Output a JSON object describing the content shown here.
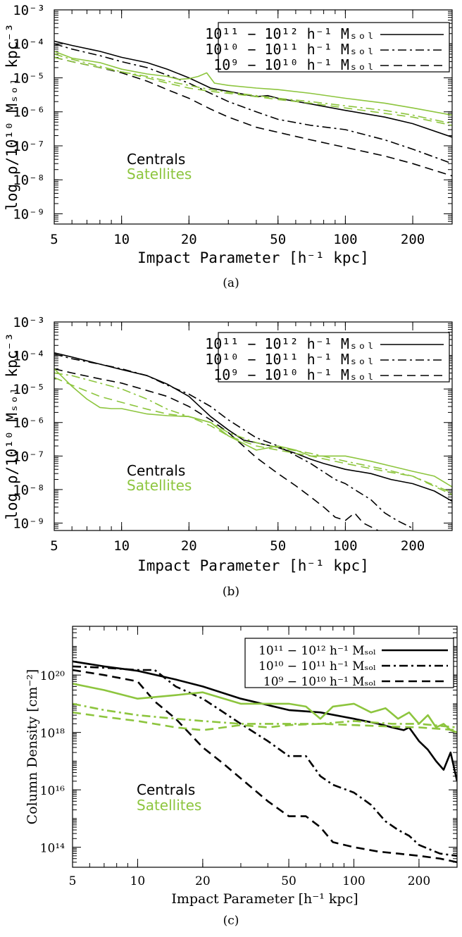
{
  "colors": {
    "centrals": "#000000",
    "satellites": "#8dc53e"
  },
  "chart_data": [
    {
      "type": "line",
      "caption": "(a)",
      "xlabel": "Impact Parameter [h⁻¹ kpc]",
      "ylabel": "log ρ/10¹⁰ Mₛₒₗ kpc⁻³",
      "xscale": "log",
      "yscale": "log",
      "xlim": [
        5,
        300
      ],
      "ylim": [
        5e-10,
        0.001
      ],
      "xticks": [
        5,
        10,
        20,
        50,
        100,
        200
      ],
      "xtick_labels": [
        "5",
        "10",
        "20",
        "50",
        "100",
        "200"
      ],
      "yticks": [
        1e-09,
        1e-08,
        1e-07,
        1e-06,
        1e-05,
        0.0001,
        0.001
      ],
      "ytick_labels": [
        "10⁻⁹",
        "10⁻⁸",
        "10⁻⁷",
        "10⁻⁶",
        "10⁻⁵",
        "10⁻⁴",
        "10⁻³"
      ],
      "legend_position": "top-right",
      "legend": [
        {
          "label": "10¹¹ − 10¹² h⁻¹ Mₛₒₗ",
          "style": "solid"
        },
        {
          "label": "10¹⁰ − 10¹¹ h⁻¹ Mₛₒₗ",
          "style": "dashdot"
        },
        {
          "label": "10⁹ − 10¹⁰ h⁻¹ Mₛₒₗ",
          "style": "dashed"
        }
      ],
      "annotations": [
        "Centrals",
        "Satellites"
      ],
      "series": [
        {
          "group": "Centrals",
          "mass_bin": "10^11-10^12",
          "style": "solid",
          "x": [
            5,
            6,
            8,
            10,
            13,
            16,
            20,
            25,
            30,
            35,
            40,
            45,
            50,
            70,
            100,
            150,
            200,
            300
          ],
          "y": [
            0.00012,
            9e-05,
            6e-05,
            4e-05,
            2.8e-05,
            1.8e-05,
            1e-05,
            5e-06,
            4e-06,
            3.3e-06,
            2.8e-06,
            3e-06,
            2.5e-06,
            1.7e-06,
            1.1e-06,
            7e-07,
            4.5e-07,
            1.8e-07
          ]
        },
        {
          "group": "Centrals",
          "mass_bin": "10^10-10^11",
          "style": "dashdot",
          "x": [
            5,
            6,
            8,
            10,
            13,
            16,
            20,
            25,
            30,
            40,
            50,
            70,
            100,
            150,
            200,
            300
          ],
          "y": [
            0.0001,
            7e-05,
            4.5e-05,
            3e-05,
            2e-05,
            1.2e-05,
            7e-06,
            3.5e-06,
            2e-06,
            1e-06,
            6e-07,
            4e-07,
            3e-07,
            1.5e-07,
            8e-08,
            3e-08
          ]
        },
        {
          "group": "Centrals",
          "mass_bin": "10^9-10^10",
          "style": "dashed",
          "x": [
            5,
            6,
            8,
            10,
            13,
            16,
            20,
            25,
            30,
            40,
            50,
            70,
            100,
            150,
            200,
            300
          ],
          "y": [
            4e-05,
            3e-05,
            2e-05,
            1.4e-05,
            8e-06,
            4.5e-06,
            2.5e-06,
            1.2e-06,
            7e-07,
            3.5e-07,
            2.5e-07,
            1.5e-07,
            9e-08,
            5e-08,
            3e-08,
            1.3e-08
          ]
        },
        {
          "group": "Satellites",
          "mass_bin": "10^11-10^12",
          "style": "solid",
          "x": [
            5,
            6,
            8,
            10,
            13,
            16,
            18,
            20,
            22,
            24,
            26,
            30,
            40,
            50,
            70,
            100,
            150,
            200,
            300
          ],
          "y": [
            6e-05,
            3.8e-05,
            2.8e-05,
            1.8e-05,
            1.3e-05,
            1.1e-05,
            9e-06,
            9.5e-06,
            1.1e-05,
            1.4e-05,
            7e-06,
            6e-06,
            5e-06,
            4.5e-06,
            3.5e-06,
            2.5e-06,
            1.8e-06,
            1.3e-06,
            8e-07
          ]
        },
        {
          "group": "Satellites",
          "mass_bin": "10^10-10^11",
          "style": "dashdot",
          "x": [
            5,
            6,
            8,
            10,
            13,
            16,
            20,
            25,
            30,
            40,
            50,
            70,
            100,
            150,
            200,
            300
          ],
          "y": [
            5e-05,
            3.5e-05,
            2.2e-05,
            1.5e-05,
            1.1e-05,
            8e-06,
            6e-06,
            4.5e-06,
            3.8e-06,
            3e-06,
            2.5e-06,
            2e-06,
            1.5e-06,
            1.1e-06,
            8e-07,
            4.5e-07
          ]
        },
        {
          "group": "Satellites",
          "mass_bin": "10^9-10^10",
          "style": "dashed",
          "x": [
            5,
            6,
            8,
            10,
            13,
            16,
            20,
            25,
            30,
            40,
            50,
            70,
            100,
            150,
            200,
            300
          ],
          "y": [
            4e-05,
            3e-05,
            2e-05,
            1.5e-05,
            1e-05,
            7e-06,
            5e-06,
            4e-06,
            3.5e-06,
            2.8e-06,
            2.3e-06,
            1.8e-06,
            1.3e-06,
            9e-07,
            7e-07,
            4e-07
          ]
        }
      ]
    },
    {
      "type": "line",
      "caption": "(b)",
      "xlabel": "Impact Parameter [h⁻¹ kpc]",
      "ylabel": "log ρ/10¹⁰ Mₛₒₗ kpc⁻³",
      "xscale": "log",
      "yscale": "log",
      "xlim": [
        5,
        300
      ],
      "ylim": [
        6e-10,
        0.001
      ],
      "xticks": [
        5,
        10,
        20,
        50,
        100,
        200
      ],
      "xtick_labels": [
        "5",
        "10",
        "20",
        "50",
        "100",
        "200"
      ],
      "yticks": [
        1e-09,
        1e-08,
        1e-07,
        1e-06,
        1e-05,
        0.0001,
        0.001
      ],
      "ytick_labels": [
        "10⁻⁹",
        "10⁻⁸",
        "10⁻⁷",
        "10⁻⁶",
        "10⁻⁵",
        "10⁻⁴",
        "10⁻³"
      ],
      "legend_position": "top-right",
      "legend": [
        {
          "label": "10¹¹ − 10¹² h⁻¹ Mₛₒₗ",
          "style": "solid"
        },
        {
          "label": "10¹⁰ − 10¹¹ h⁻¹ Mₛₒₗ",
          "style": "dashdot"
        },
        {
          "label": "10⁹ − 10¹⁰ h⁻¹ Mₛₒₗ",
          "style": "dashed"
        }
      ],
      "annotations": [
        "Centrals",
        "Satellites"
      ],
      "series": [
        {
          "group": "Centrals",
          "mass_bin": "10^11-10^12",
          "style": "solid",
          "x": [
            5,
            6,
            8,
            10,
            13,
            16,
            20,
            25,
            30,
            35,
            40,
            50,
            60,
            70,
            80,
            100,
            130,
            160,
            200,
            250,
            300
          ],
          "y": [
            0.00012,
            9e-05,
            5.5e-05,
            3.8e-05,
            2.5e-05,
            1.4e-05,
            6e-06,
            1.5e-06,
            6e-07,
            3e-07,
            2.5e-07,
            1.8e-07,
            1.2e-07,
            8e-08,
            6e-08,
            4e-08,
            3e-08,
            2e-08,
            1.5e-08,
            9e-09,
            4.5e-09
          ]
        },
        {
          "group": "Centrals",
          "mass_bin": "10^10-10^11",
          "style": "dashdot",
          "x": [
            5,
            6,
            8,
            10,
            13,
            16,
            20,
            25,
            30,
            40,
            50,
            70,
            90,
            100,
            110,
            130,
            150,
            170,
            200
          ],
          "y": [
            0.00011,
            8e-05,
            5.5e-05,
            4e-05,
            2.5e-05,
            1.3e-05,
            7e-06,
            3e-06,
            1.2e-06,
            3.5e-07,
            2e-07,
            6e-08,
            2e-08,
            1.5e-08,
            1e-08,
            5e-09,
            2e-09,
            1.2e-09,
            7e-10
          ]
        },
        {
          "group": "Centrals",
          "mass_bin": "10^9-10^10",
          "style": "dashed",
          "x": [
            5,
            6,
            8,
            10,
            13,
            16,
            20,
            25,
            30,
            35,
            40,
            50,
            60,
            70,
            80,
            90,
            100,
            110,
            120,
            140
          ],
          "y": [
            4e-05,
            3e-05,
            2e-05,
            1.5e-05,
            9e-06,
            6e-06,
            3e-06,
            1.2e-06,
            5e-07,
            2e-07,
            9e-08,
            3e-08,
            1.3e-08,
            6e-09,
            3e-09,
            1.5e-09,
            1.2e-09,
            2e-09,
            1e-09,
            6e-10
          ]
        },
        {
          "group": "Satellites",
          "mass_bin": "10^11-10^12",
          "style": "solid",
          "x": [
            5,
            6,
            7,
            8,
            9,
            10,
            13,
            16,
            20,
            25,
            30,
            40,
            50,
            60,
            70,
            80,
            100,
            130,
            160,
            200,
            250,
            300
          ],
          "y": [
            4e-05,
            1.2e-05,
            5e-06,
            2.8e-06,
            2.6e-06,
            2.6e-06,
            1.8e-06,
            1.6e-06,
            1.5e-06,
            1e-06,
            4e-07,
            1.5e-07,
            2e-07,
            1.5e-07,
            1e-07,
            1e-07,
            1e-07,
            7e-08,
            5e-08,
            3.5e-08,
            2.5e-08,
            1.2e-08
          ]
        },
        {
          "group": "Satellites",
          "mass_bin": "10^10-10^11",
          "style": "dashdot",
          "x": [
            5,
            6,
            8,
            10,
            13,
            16,
            20,
            25,
            30,
            40,
            50,
            70,
            100,
            150,
            200,
            300
          ],
          "y": [
            3e-05,
            2.5e-05,
            1.5e-05,
            1e-05,
            5e-06,
            2.5e-06,
            1.5e-06,
            1e-06,
            5e-07,
            2.5e-07,
            1.8e-07,
            1.2e-07,
            7e-08,
            4e-08,
            2.5e-08,
            8e-09
          ]
        },
        {
          "group": "Satellites",
          "mass_bin": "10^9-10^10",
          "style": "dashed",
          "x": [
            5,
            6,
            8,
            10,
            13,
            16,
            20,
            25,
            30,
            40,
            50,
            70,
            100,
            150,
            200,
            300
          ],
          "y": [
            2.2e-05,
            1.3e-05,
            6e-06,
            4e-06,
            2.5e-06,
            1.8e-06,
            1.5e-06,
            8e-07,
            4e-07,
            2e-07,
            1.5e-07,
            1e-07,
            6e-08,
            3.5e-08,
            2.5e-08,
            7e-09
          ]
        }
      ]
    },
    {
      "type": "line",
      "caption": "(c)",
      "xlabel": "Impact Parameter [h⁻¹ kpc]",
      "ylabel": "Column Density [cm⁻²]",
      "xscale": "log",
      "yscale": "log",
      "xlim": [
        5,
        300
      ],
      "ylim": [
        20000000000000.0,
        5e+21
      ],
      "xticks": [
        5,
        10,
        20,
        50,
        100,
        200
      ],
      "xtick_labels": [
        "5",
        "10",
        "20",
        "50",
        "100",
        "200"
      ],
      "yticks": [
        100000000000000.0,
        1e+16,
        1e+18,
        1e+20
      ],
      "ytick_labels": [
        "10¹⁴",
        "10¹⁶",
        "10¹⁸",
        "10²⁰"
      ],
      "legend_position": "top-right",
      "legend": [
        {
          "label": "10¹¹ − 10¹² h⁻¹ Mₛₒₗ",
          "style": "solid"
        },
        {
          "label": "10¹⁰ − 10¹¹ h⁻¹ Mₛₒₗ",
          "style": "dashdot"
        },
        {
          "label": "10⁹ − 10¹⁰ h⁻¹ Mₛₒₗ",
          "style": "dashed"
        }
      ],
      "annotations": [
        "Centrals",
        "Satellites"
      ],
      "series": [
        {
          "group": "Centrals",
          "mass_bin": "10^11-10^12",
          "style": "solid",
          "x": [
            5,
            7,
            10,
            15,
            20,
            30,
            50,
            70,
            100,
            130,
            150,
            170,
            180,
            200,
            220,
            240,
            260,
            280,
            300
          ],
          "y": [
            3e+20,
            2e+20,
            1.4e+20,
            7e+19,
            4e+19,
            1.5e+19,
            6e+18,
            5e+18,
            3e+18,
            2e+18,
            1.5e+18,
            1.2e+18,
            1.5e+18,
            5e+17,
            2.5e+17,
            1e+17,
            5e+16,
            2e+17,
            2e+16
          ]
        },
        {
          "group": "Centrals",
          "mass_bin": "10^10-10^11",
          "style": "dashdot",
          "x": [
            5,
            7,
            10,
            12,
            15,
            20,
            25,
            30,
            40,
            50,
            60,
            70,
            80,
            100,
            120,
            140,
            160,
            180,
            200,
            250,
            300
          ],
          "y": [
            2e+20,
            1.8e+20,
            1.5e+20,
            1.5e+20,
            4e+19,
            1.5e+19,
            5e+18,
            2e+18,
            5e+17,
            1.5e+17,
            1.5e+17,
            3e+16,
            1.5e+16,
            8000000000000000.0,
            3000000000000000.0,
            800000000000000.0,
            400000000000000.0,
            250000000000000.0,
            120000000000000.0,
            60000000000000.0,
            50000000000000.0
          ]
        },
        {
          "group": "Centrals",
          "mass_bin": "10^9-10^10",
          "style": "dashed",
          "x": [
            5,
            7,
            10,
            12,
            15,
            20,
            25,
            30,
            40,
            50,
            60,
            70,
            80,
            100,
            130,
            160,
            200,
            250,
            300
          ],
          "y": [
            1.5e+20,
            1e+20,
            6e+19,
            1.2e+19,
            3e+18,
            3e+17,
            8e+16,
            2.5e+16,
            4000000000000000.0,
            1200000000000000.0,
            1200000000000000.0,
            500000000000000.0,
            150000000000000.0,
            100000000000000.0,
            70000000000000.0,
            60000000000000.0,
            50000000000000.0,
            40000000000000.0,
            30000000000000.0
          ]
        },
        {
          "group": "Satellites",
          "mass_bin": "10^11-10^12",
          "style": "solid",
          "x": [
            5,
            7,
            10,
            15,
            20,
            30,
            50,
            60,
            70,
            80,
            100,
            120,
            140,
            160,
            180,
            200,
            220,
            240,
            260,
            280,
            300
          ],
          "y": [
            5e+19,
            3e+19,
            1.5e+19,
            2e+19,
            2.5e+19,
            1e+19,
            1e+19,
            8e+18,
            3e+18,
            8e+18,
            1e+19,
            5e+18,
            7e+18,
            3e+18,
            5e+18,
            2e+18,
            4e+18,
            1.5e+18,
            2e+18,
            1.2e+18,
            1e+18
          ]
        },
        {
          "group": "Satellites",
          "mass_bin": "10^10-10^11",
          "style": "dashdot",
          "x": [
            5,
            7,
            10,
            15,
            20,
            30,
            50,
            70,
            100,
            150,
            200,
            300
          ],
          "y": [
            1e+19,
            6e+18,
            4e+18,
            3e+18,
            2.5e+18,
            2e+18,
            2e+18,
            2e+18,
            2.5e+18,
            2e+18,
            2e+18,
            1.5e+18
          ]
        },
        {
          "group": "Satellites",
          "mass_bin": "10^9-10^10",
          "style": "dashed",
          "x": [
            5,
            7,
            10,
            15,
            20,
            25,
            30,
            40,
            50,
            70,
            100,
            150,
            200,
            300
          ],
          "y": [
            5e+18,
            3.5e+18,
            2.5e+18,
            1.5e+18,
            1.2e+18,
            1.5e+18,
            1.8e+18,
            1.5e+18,
            1.8e+18,
            2e+18,
            1.8e+18,
            1.6e+18,
            1.5e+18,
            1.2e+18
          ]
        }
      ]
    }
  ]
}
